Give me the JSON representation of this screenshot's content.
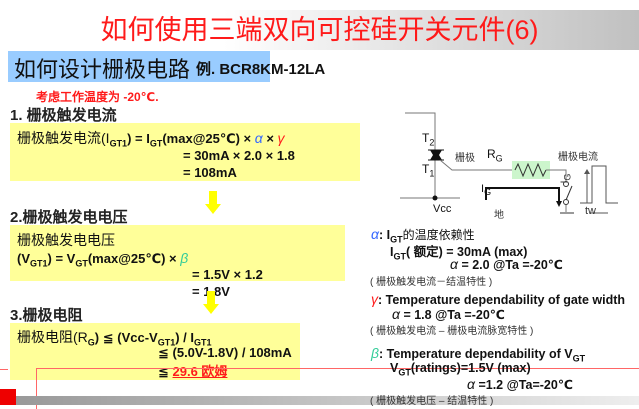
{
  "title": "如何使用三端双向可控硅开关元件(6)",
  "subtitle": "如何设计栅极电路",
  "example": "例. BCR8KM-12LA",
  "note": "考虑工作温度为 -20℃.",
  "sec1": {
    "heading": "1. 栅极触发电流",
    "l1a": "栅极触发电流(I",
    "l1sub": "GT1",
    "l1b": ") = I",
    "l1sub2": "GT",
    "l1c": "(max@25℃) × ",
    "alpha": "α",
    "x": " × ",
    "gamma": "γ",
    "l2": "= 30mA × 2.0 × 1.8",
    "l3": "= 108mA"
  },
  "sec2": {
    "heading": "2.栅极触发电电压",
    "l1": "栅极触发电电压",
    "l2a": "(V",
    "l2sub": "GT1",
    "l2b": ") = V",
    "l2sub2": "GT",
    "l2c": "(max@25℃) × ",
    "beta": "β",
    "l3": "= 1.5V × 1.2",
    "l4": "= 1.8V"
  },
  "sec3": {
    "heading": "3.栅极电阻",
    "l1a": "栅极电阻(R",
    "l1sub": "G",
    "l1b": ") ≦ (Vcc-V",
    "l1sub2": "GT1",
    "l1c": ") / I",
    "l1sub3": "GT1",
    "l2": "≦ (5.0V-1.8V) / 108mA",
    "l3a": "≦ ",
    "result": "29.6 欧姆"
  },
  "circuit": {
    "t2": "T",
    "t2sub": "2",
    "t1": "T",
    "t1sub": "1",
    "gate": "栅极",
    "rg": "R",
    "rgsub": "G",
    "ig": "I",
    "igsub": "G",
    "vcc": "Vcc",
    "ground": "地",
    "pulse_title": "栅极电流",
    "pulse_ig": "I",
    "pulse_igsub": "G",
    "tw": "tw"
  },
  "right": {
    "alpha_sym": "α",
    "alpha_title_a": ": I",
    "alpha_title_sub": "GT",
    "alpha_title_b": "的温度依赖性",
    "alpha_l2a": "I",
    "alpha_l2sub": "GT",
    "alpha_l2b": "( 额定) = 30mA (max)",
    "alpha_l3a": "α",
    "alpha_l3b": " = 2.0 @Ta =-20℃",
    "alpha_note": "( 栅极触发电流－结温特性 )",
    "gamma_sym": "γ",
    "gamma_title": ": Temperature dependability of gate width",
    "gamma_l2a": "α",
    "gamma_l2b": " = 1.8 @Ta =-20℃",
    "gamma_note": "( 栅极触发电流 – 栅极电流脉宽特性 )",
    "beta_sym": "β",
    "beta_title_a": ": Temperature dependability of V",
    "beta_title_sub": "GT",
    "beta_l2a": "V",
    "beta_l2sub": "GT",
    "beta_l2b": "(ratings)=1.5V (max)",
    "beta_l3a": "α",
    "beta_l3b": " =1.2 @Ta=-20℃",
    "beta_note": "( 栅极触发电压 – 结温特性 )"
  },
  "colors": {
    "title": "#ff1a1a",
    "box": "#ffff99",
    "band": "#99ccff",
    "alpha": "#3366ff",
    "gamma": "#ff1a1a",
    "beta": "#33cc99"
  }
}
